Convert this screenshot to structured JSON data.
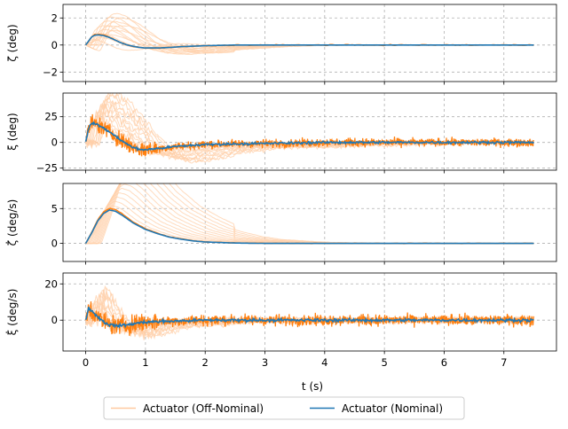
{
  "chart_data": [
    {
      "type": "line",
      "ylabel": "ζ (deg)",
      "ylim": [
        -2.7,
        3.0
      ],
      "yticks": [
        -2,
        0,
        2
      ],
      "xlim": [
        -0.38,
        7.88
      ],
      "grid": true,
      "series": [
        {
          "name": "Actuator (Nominal)",
          "x": [
            0,
            0.05,
            0.1,
            0.15,
            0.2,
            0.3,
            0.4,
            0.5,
            0.6,
            0.7,
            0.8,
            0.9,
            1.0,
            1.2,
            1.4,
            1.6,
            2.0,
            2.5,
            3,
            4,
            5,
            6,
            7,
            7.5
          ],
          "values": [
            0,
            0.3,
            0.6,
            0.72,
            0.75,
            0.7,
            0.55,
            0.35,
            0.15,
            0,
            -0.1,
            -0.18,
            -0.22,
            -0.22,
            -0.18,
            -0.12,
            -0.05,
            0,
            0,
            0,
            0,
            0,
            0,
            0
          ]
        }
      ]
    },
    {
      "type": "line",
      "ylabel": "ξ (deg)",
      "ylim": [
        -27,
        48
      ],
      "yticks": [
        -25,
        0,
        25
      ],
      "xlim": [
        -0.38,
        7.88
      ],
      "grid": true,
      "series": [
        {
          "name": "Actuator (Nominal)",
          "x": [
            0,
            0.05,
            0.1,
            0.2,
            0.3,
            0.4,
            0.5,
            0.6,
            0.7,
            0.8,
            0.9,
            1.0,
            1.2,
            1.5,
            2,
            3,
            4,
            5,
            6,
            7,
            7.5
          ],
          "values": [
            0,
            14,
            19,
            17,
            14,
            10,
            6,
            2,
            -2,
            -5,
            -7,
            -7,
            -6,
            -4,
            -2,
            -1,
            0,
            0,
            0,
            0,
            0
          ]
        }
      ]
    },
    {
      "type": "line",
      "ylabel": "ζ̇ (deg/s)",
      "ylim": [
        -2.6,
        8.6
      ],
      "yticks": [
        0,
        5
      ],
      "xlim": [
        -0.38,
        7.88
      ],
      "grid": true,
      "series": [
        {
          "name": "Actuator (Nominal)",
          "x": [
            0,
            0.1,
            0.2,
            0.3,
            0.4,
            0.5,
            0.6,
            0.7,
            0.8,
            1.0,
            1.2,
            1.4,
            1.6,
            1.8,
            2.0,
            2.5,
            3,
            4,
            5,
            6,
            7,
            7.5
          ],
          "values": [
            0,
            1.5,
            3.2,
            4.3,
            4.8,
            4.6,
            4.1,
            3.5,
            2.9,
            2.0,
            1.4,
            0.9,
            0.6,
            0.35,
            0.2,
            0.05,
            0,
            0,
            0,
            0,
            0,
            0
          ]
        }
      ]
    },
    {
      "type": "line",
      "ylabel": "ξ̇ (deg/s)",
      "ylim": [
        -17,
        26
      ],
      "yticks": [
        0,
        20
      ],
      "xlim": [
        -0.38,
        7.88
      ],
      "xticks": [
        0,
        1,
        2,
        3,
        4,
        5,
        6,
        7
      ],
      "xlabel": "t (s)",
      "grid": true,
      "series": [
        {
          "name": "Actuator (Nominal)",
          "x": [
            0,
            0.05,
            0.1,
            0.2,
            0.3,
            0.4,
            0.5,
            0.6,
            0.8,
            1.0,
            1.5,
            2,
            3,
            4,
            5,
            6,
            7,
            7.5
          ],
          "values": [
            0,
            7,
            5,
            2,
            -1,
            -2.5,
            -3,
            -3,
            -2,
            -1,
            -0.5,
            0,
            0,
            0,
            0,
            0,
            0,
            0
          ]
        }
      ]
    }
  ],
  "legend": {
    "entries": [
      {
        "label": "Actuator (Off-Nominal)",
        "color": "#ffbe86"
      },
      {
        "label": "Actuator (Nominal)",
        "color": "#1f77b4"
      }
    ],
    "placement": "bottom-center"
  },
  "colors": {
    "nominal": "#1f77b4",
    "off_nominal": "#ff7f0e",
    "off_nominal_light": "#ffcfa8",
    "grid": "#b0b0b0"
  }
}
